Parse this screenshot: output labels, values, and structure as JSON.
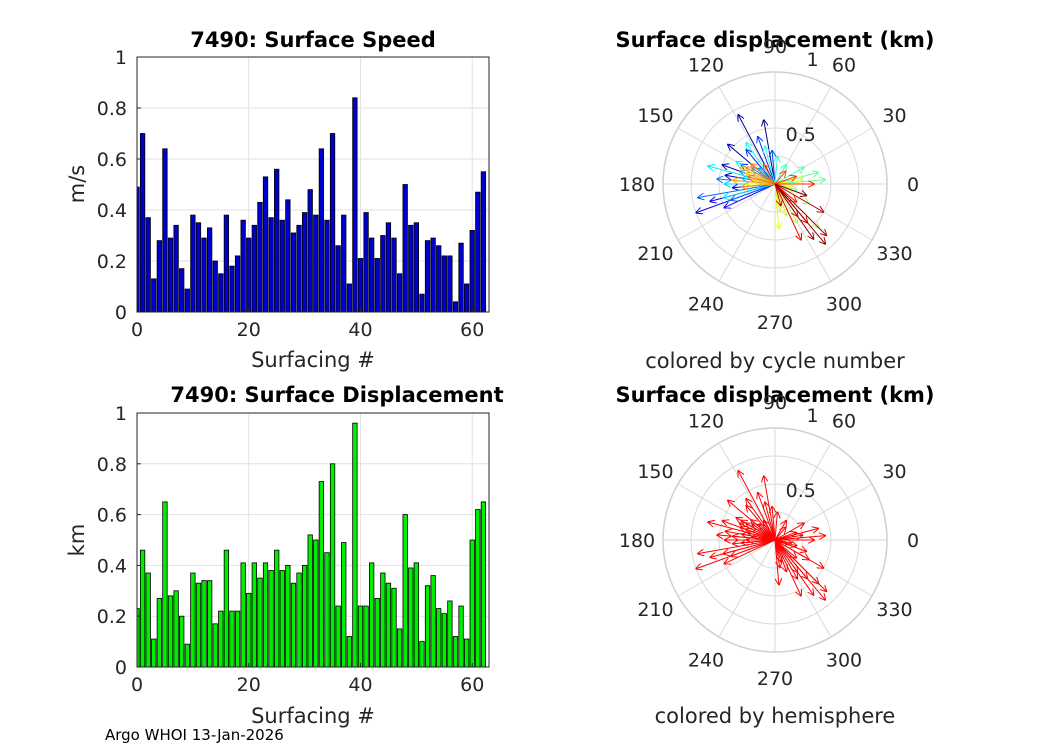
{
  "footer": "Argo WHOI 13-Jan-2026",
  "chart_data": [
    {
      "type": "bar",
      "title": "7490: Surface Speed",
      "xlabel": "Surfacing #",
      "ylabel": "m/s",
      "xlim": [
        0,
        63
      ],
      "ylim": [
        0,
        1
      ],
      "xticks": [
        "0",
        "20",
        "40",
        "60"
      ],
      "yticks": [
        "0",
        "0.2",
        "0.4",
        "0.6",
        "0.8",
        "1"
      ],
      "bar_color": "#0000cc",
      "x": [
        0,
        1,
        2,
        3,
        4,
        5,
        6,
        7,
        8,
        9,
        10,
        11,
        12,
        13,
        14,
        15,
        16,
        17,
        18,
        19,
        20,
        21,
        22,
        23,
        24,
        25,
        26,
        27,
        28,
        29,
        30,
        31,
        32,
        33,
        34,
        35,
        36,
        37,
        38,
        39,
        40,
        41,
        42,
        43,
        44,
        45,
        46,
        47,
        48,
        49,
        50,
        51,
        52,
        53,
        54,
        55,
        56,
        57,
        58,
        59,
        60,
        61,
        62
      ],
      "values": [
        0.49,
        0.7,
        0.37,
        0.13,
        0.28,
        0.64,
        0.29,
        0.34,
        0.17,
        0.09,
        0.38,
        0.35,
        0.29,
        0.33,
        0.2,
        0.15,
        0.38,
        0.18,
        0.22,
        0.36,
        0.29,
        0.34,
        0.43,
        0.53,
        0.37,
        0.56,
        0.36,
        0.44,
        0.31,
        0.34,
        0.39,
        0.48,
        0.38,
        0.64,
        0.36,
        0.7,
        0.26,
        0.38,
        0.11,
        0.84,
        0.21,
        0.39,
        0.29,
        0.21,
        0.3,
        0.35,
        0.29,
        0.15,
        0.5,
        0.34,
        0.35,
        0.07,
        0.28,
        0.29,
        0.26,
        0.22,
        0.22,
        0.04,
        0.27,
        0.11,
        0.32,
        0.47,
        0.55
      ]
    },
    {
      "type": "polar-quiver",
      "title": "Surface displacement (km)",
      "subtitle": "colored by cycle number",
      "rlim": [
        0,
        1
      ],
      "rticks": [
        "0.5",
        "1"
      ],
      "angle_ticks": [
        "0",
        "30",
        "60",
        "90",
        "120",
        "150",
        "180",
        "210",
        "240",
        "270",
        "300",
        "330"
      ],
      "colormap": [
        "#00008f",
        "#0000ff",
        "#0080ff",
        "#00ffff",
        "#80ff80",
        "#ffff00",
        "#ff8000",
        "#ff0000",
        "#800000"
      ],
      "vectors": [
        {
          "angle": 100,
          "r": 0.58
        },
        {
          "angle": 118,
          "r": 0.7
        },
        {
          "angle": 140,
          "r": 0.55
        },
        {
          "angle": 160,
          "r": 0.5
        },
        {
          "angle": 170,
          "r": 0.45
        },
        {
          "angle": 185,
          "r": 0.38
        },
        {
          "angle": 195,
          "r": 0.6
        },
        {
          "angle": 200,
          "r": 0.75
        },
        {
          "angle": 205,
          "r": 0.5
        },
        {
          "angle": 150,
          "r": 0.35
        },
        {
          "angle": 130,
          "r": 0.4
        },
        {
          "angle": 110,
          "r": 0.45
        },
        {
          "angle": 95,
          "r": 0.3
        },
        {
          "angle": 200,
          "r": 0.42
        },
        {
          "angle": 190,
          "r": 0.7
        },
        {
          "angle": 175,
          "r": 0.52
        },
        {
          "angle": 160,
          "r": 0.33
        },
        {
          "angle": 145,
          "r": 0.25
        },
        {
          "angle": 135,
          "r": 0.2
        },
        {
          "angle": 170,
          "r": 0.3
        },
        {
          "angle": 180,
          "r": 0.45
        },
        {
          "angle": 195,
          "r": 0.48
        },
        {
          "angle": 165,
          "r": 0.62
        },
        {
          "angle": 150,
          "r": 0.4
        },
        {
          "angle": 125,
          "r": 0.45
        },
        {
          "angle": 105,
          "r": 0.35
        },
        {
          "angle": 85,
          "r": 0.25
        },
        {
          "angle": 60,
          "r": 0.2
        },
        {
          "angle": 30,
          "r": 0.3
        },
        {
          "angle": 15,
          "r": 0.4
        },
        {
          "angle": 5,
          "r": 0.45
        },
        {
          "angle": 345,
          "r": 0.2
        },
        {
          "angle": 330,
          "r": 0.35
        },
        {
          "angle": 315,
          "r": 0.55
        },
        {
          "angle": 300,
          "r": 0.4
        },
        {
          "angle": 290,
          "r": 0.3
        },
        {
          "angle": 280,
          "r": 0.25
        },
        {
          "angle": 275,
          "r": 0.4
        },
        {
          "angle": 10,
          "r": 0.25
        },
        {
          "angle": 350,
          "r": 0.15
        },
        {
          "angle": 180,
          "r": 0.25
        },
        {
          "angle": 170,
          "r": 0.2
        },
        {
          "angle": 160,
          "r": 0.28
        },
        {
          "angle": 155,
          "r": 0.35
        },
        {
          "angle": 175,
          "r": 0.38
        },
        {
          "angle": 185,
          "r": 0.3
        },
        {
          "angle": 150,
          "r": 0.3
        },
        {
          "angle": 140,
          "r": 0.28
        },
        {
          "angle": 165,
          "r": 0.25
        },
        {
          "angle": 120,
          "r": 0.2
        },
        {
          "angle": 50,
          "r": 0.15
        },
        {
          "angle": 20,
          "r": 0.2
        },
        {
          "angle": 0,
          "r": 0.35
        },
        {
          "angle": 320,
          "r": 0.25
        },
        {
          "angle": 310,
          "r": 0.45
        },
        {
          "angle": 295,
          "r": 0.55
        },
        {
          "angle": 305,
          "r": 0.35
        },
        {
          "angle": 285,
          "r": 0.2
        },
        {
          "angle": 330,
          "r": 0.5
        },
        {
          "angle": 315,
          "r": 0.65
        },
        {
          "angle": 305,
          "r": 0.6
        },
        {
          "angle": 310,
          "r": 0.7
        },
        {
          "angle": 340,
          "r": 0.3
        }
      ]
    },
    {
      "type": "bar",
      "title": "7490: Surface Displacement",
      "xlabel": "Surfacing #",
      "ylabel": "km",
      "xlim": [
        0,
        63
      ],
      "ylim": [
        0,
        1
      ],
      "xticks": [
        "0",
        "20",
        "40",
        "60"
      ],
      "yticks": [
        "0",
        "0.2",
        "0.4",
        "0.6",
        "0.8",
        "1"
      ],
      "bar_color": "#00ee00",
      "x": [
        0,
        1,
        2,
        3,
        4,
        5,
        6,
        7,
        8,
        9,
        10,
        11,
        12,
        13,
        14,
        15,
        16,
        17,
        18,
        19,
        20,
        21,
        22,
        23,
        24,
        25,
        26,
        27,
        28,
        29,
        30,
        31,
        32,
        33,
        34,
        35,
        36,
        37,
        38,
        39,
        40,
        41,
        42,
        43,
        44,
        45,
        46,
        47,
        48,
        49,
        50,
        51,
        52,
        53,
        54,
        55,
        56,
        57,
        58,
        59,
        60,
        61,
        62
      ],
      "values": [
        0.23,
        0.46,
        0.37,
        0.11,
        0.27,
        0.65,
        0.28,
        0.3,
        0.2,
        0.09,
        0.37,
        0.33,
        0.34,
        0.34,
        0.17,
        0.22,
        0.46,
        0.22,
        0.22,
        0.41,
        0.29,
        0.41,
        0.35,
        0.41,
        0.38,
        0.46,
        0.38,
        0.4,
        0.33,
        0.37,
        0.4,
        0.52,
        0.5,
        0.73,
        0.45,
        0.8,
        0.24,
        0.49,
        0.12,
        0.96,
        0.24,
        0.24,
        0.41,
        0.27,
        0.37,
        0.33,
        0.31,
        0.15,
        0.6,
        0.39,
        0.41,
        0.1,
        0.32,
        0.36,
        0.23,
        0.21,
        0.26,
        0.12,
        0.24,
        0.11,
        0.5,
        0.62,
        0.65
      ]
    },
    {
      "type": "polar-quiver",
      "title": "Surface displacement (km)",
      "subtitle": "colored by hemisphere",
      "rlim": [
        0,
        1
      ],
      "rticks": [
        "0.5",
        "1"
      ],
      "angle_ticks": [
        "0",
        "30",
        "60",
        "90",
        "120",
        "150",
        "180",
        "210",
        "240",
        "270",
        "300",
        "330"
      ],
      "arrow_color": "#ff0000",
      "vectors": [
        {
          "angle": 100,
          "r": 0.58
        },
        {
          "angle": 118,
          "r": 0.7
        },
        {
          "angle": 140,
          "r": 0.55
        },
        {
          "angle": 160,
          "r": 0.5
        },
        {
          "angle": 170,
          "r": 0.45
        },
        {
          "angle": 185,
          "r": 0.38
        },
        {
          "angle": 195,
          "r": 0.6
        },
        {
          "angle": 200,
          "r": 0.75
        },
        {
          "angle": 205,
          "r": 0.5
        },
        {
          "angle": 150,
          "r": 0.35
        },
        {
          "angle": 130,
          "r": 0.4
        },
        {
          "angle": 110,
          "r": 0.45
        },
        {
          "angle": 95,
          "r": 0.3
        },
        {
          "angle": 200,
          "r": 0.42
        },
        {
          "angle": 190,
          "r": 0.7
        },
        {
          "angle": 175,
          "r": 0.52
        },
        {
          "angle": 160,
          "r": 0.33
        },
        {
          "angle": 145,
          "r": 0.25
        },
        {
          "angle": 135,
          "r": 0.2
        },
        {
          "angle": 170,
          "r": 0.3
        },
        {
          "angle": 180,
          "r": 0.45
        },
        {
          "angle": 195,
          "r": 0.48
        },
        {
          "angle": 165,
          "r": 0.62
        },
        {
          "angle": 150,
          "r": 0.4
        },
        {
          "angle": 125,
          "r": 0.45
        },
        {
          "angle": 105,
          "r": 0.35
        },
        {
          "angle": 85,
          "r": 0.25
        },
        {
          "angle": 60,
          "r": 0.2
        },
        {
          "angle": 30,
          "r": 0.3
        },
        {
          "angle": 15,
          "r": 0.4
        },
        {
          "angle": 5,
          "r": 0.45
        },
        {
          "angle": 345,
          "r": 0.2
        },
        {
          "angle": 330,
          "r": 0.35
        },
        {
          "angle": 315,
          "r": 0.55
        },
        {
          "angle": 300,
          "r": 0.4
        },
        {
          "angle": 290,
          "r": 0.3
        },
        {
          "angle": 280,
          "r": 0.25
        },
        {
          "angle": 275,
          "r": 0.4
        },
        {
          "angle": 10,
          "r": 0.25
        },
        {
          "angle": 350,
          "r": 0.15
        },
        {
          "angle": 180,
          "r": 0.25
        },
        {
          "angle": 170,
          "r": 0.2
        },
        {
          "angle": 160,
          "r": 0.28
        },
        {
          "angle": 155,
          "r": 0.35
        },
        {
          "angle": 175,
          "r": 0.38
        },
        {
          "angle": 185,
          "r": 0.3
        },
        {
          "angle": 150,
          "r": 0.3
        },
        {
          "angle": 140,
          "r": 0.28
        },
        {
          "angle": 165,
          "r": 0.25
        },
        {
          "angle": 120,
          "r": 0.2
        },
        {
          "angle": 50,
          "r": 0.15
        },
        {
          "angle": 20,
          "r": 0.2
        },
        {
          "angle": 0,
          "r": 0.35
        },
        {
          "angle": 320,
          "r": 0.25
        },
        {
          "angle": 310,
          "r": 0.45
        },
        {
          "angle": 295,
          "r": 0.55
        },
        {
          "angle": 305,
          "r": 0.35
        },
        {
          "angle": 285,
          "r": 0.2
        },
        {
          "angle": 330,
          "r": 0.5
        },
        {
          "angle": 315,
          "r": 0.65
        },
        {
          "angle": 305,
          "r": 0.6
        },
        {
          "angle": 310,
          "r": 0.7
        },
        {
          "angle": 340,
          "r": 0.3
        }
      ]
    }
  ]
}
